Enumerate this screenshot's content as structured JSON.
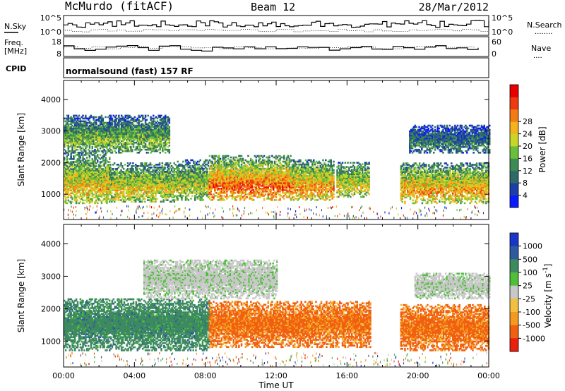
{
  "header": {
    "station": "McMurdo (fitACF)",
    "beam": "Beam 12",
    "date": "28/Mar/2012"
  },
  "panels": {
    "nsky": {
      "left_label": "N.Sky",
      "left_ticks": [
        "10^5",
        "10^0"
      ],
      "right_label": "N.Search",
      "right_ticks": [
        "10^5",
        "10^0"
      ],
      "right_dots": "........"
    },
    "freq": {
      "left_label_line1": "Freq.",
      "left_label_line2": "[MHz]",
      "left_ticks": [
        "18",
        "8"
      ],
      "right_label": "Nave",
      "right_ticks": [
        "60",
        "0"
      ],
      "right_dots": "...."
    },
    "cpid": {
      "label": "CPID",
      "text": "normalsound (fast) 157 RF"
    }
  },
  "chart_data": [
    {
      "type": "heatmap",
      "name_label": "Power [dB]",
      "ylabel": "Slant Range [km]",
      "xlabel": "",
      "ylim": [
        200,
        4600
      ],
      "yticks": [
        "1000",
        "2000",
        "3000",
        "4000"
      ],
      "x_ticks": [
        "00:00",
        "04:00",
        "08:00",
        "12:00",
        "16:00",
        "20:00",
        "00:00"
      ],
      "colorbar": {
        "ticks": [
          "4",
          "8",
          "12",
          "16",
          "20",
          "24",
          "28"
        ],
        "colors": [
          "#0a1aff",
          "#1d3ea6",
          "#2f6a6a",
          "#3e8a55",
          "#6abf3a",
          "#c8d62a",
          "#f2b31c",
          "#f47a16",
          "#ee3a10",
          "#e80000"
        ]
      },
      "echo_bands": [
        {
          "start_h": 0.0,
          "end_h": 2.6,
          "range_km": [
            700,
            2300
          ],
          "level": 0.65
        },
        {
          "start_h": 2.6,
          "end_h": 6.4,
          "range_km": [
            750,
            2000
          ],
          "level": 0.6
        },
        {
          "start_h": 6.4,
          "end_h": 8.2,
          "range_km": [
            800,
            2100
          ],
          "level": 0.55
        },
        {
          "start_h": 8.2,
          "end_h": 12.8,
          "range_km": [
            800,
            2200
          ],
          "level": 0.82
        },
        {
          "start_h": 12.8,
          "end_h": 15.2,
          "range_km": [
            800,
            2100
          ],
          "level": 0.72
        },
        {
          "start_h": 15.4,
          "end_h": 17.2,
          "range_km": [
            900,
            2000
          ],
          "level": 0.62
        },
        {
          "start_h": 19.0,
          "end_h": 24.0,
          "range_km": [
            700,
            2000
          ],
          "level": 0.7
        },
        {
          "start_h": 0.0,
          "end_h": 6.0,
          "range_km": [
            2300,
            3500
          ],
          "level": 0.45
        },
        {
          "start_h": 19.5,
          "end_h": 24.0,
          "range_km": [
            2300,
            3200
          ],
          "level": 0.3
        }
      ]
    },
    {
      "type": "heatmap",
      "name_label": "Velocity [m s^-1]",
      "ylabel": "Slant Range [km]",
      "xlabel": "Time UT",
      "ylim": [
        200,
        4600
      ],
      "yticks": [
        "1000",
        "2000",
        "3000",
        "4000"
      ],
      "x_ticks": [
        "00:00",
        "04:00",
        "08:00",
        "12:00",
        "16:00",
        "20:00",
        "00:00"
      ],
      "colorbar": {
        "ticks": [
          "1000",
          "500",
          "100",
          "25",
          "-25",
          "-100",
          "-500",
          "-1000"
        ],
        "colors": [
          "#1a36c8",
          "#2f5aa0",
          "#3e8a60",
          "#4fbf3a",
          "#c8c8c8",
          "#f2c040",
          "#f59a20",
          "#f06010",
          "#e82010"
        ]
      },
      "echo_bands": [
        {
          "start_h": 0.0,
          "end_h": 8.2,
          "range_km": [
            700,
            2300
          ],
          "class": "green"
        },
        {
          "start_h": 8.2,
          "end_h": 17.3,
          "range_km": [
            800,
            2200
          ],
          "class": "orange"
        },
        {
          "start_h": 19.0,
          "end_h": 24.0,
          "range_km": [
            700,
            2100
          ],
          "class": "orange"
        },
        {
          "start_h": 4.5,
          "end_h": 12.0,
          "range_km": [
            2300,
            3500
          ],
          "class": "gray"
        },
        {
          "start_h": 19.8,
          "end_h": 24.0,
          "range_km": [
            2300,
            3100
          ],
          "class": "gray"
        }
      ]
    }
  ]
}
